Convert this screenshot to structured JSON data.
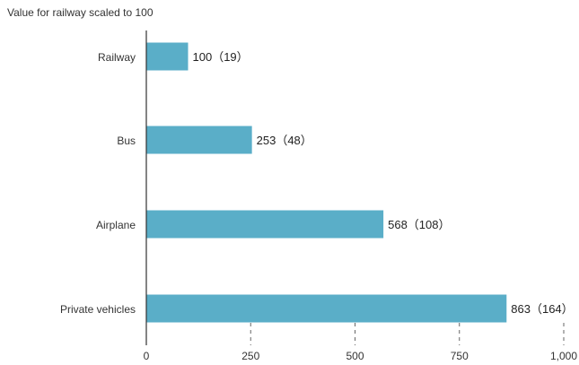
{
  "chart_data": {
    "type": "bar",
    "orientation": "horizontal",
    "title": "",
    "subtitle": "Value for railway scaled to 100",
    "categories": [
      "Railway",
      "Bus",
      "Airplane",
      "Private vehicles"
    ],
    "values": [
      100,
      253,
      568,
      863
    ],
    "secondary_values": [
      19,
      48,
      108,
      164
    ],
    "data_labels": [
      "100（19）",
      "253（48）",
      "568（108）",
      "863（164）"
    ],
    "xlim": [
      0,
      1000
    ],
    "xticks": [
      0,
      250,
      500,
      750,
      1000
    ],
    "xtick_labels": [
      "0",
      "250",
      "500",
      "750",
      "1,000"
    ],
    "grid": "dashed-vertical",
    "legend": "none",
    "colors": {
      "bar": "#5aaec8",
      "axis": "#333333",
      "grid": "#666666"
    }
  }
}
